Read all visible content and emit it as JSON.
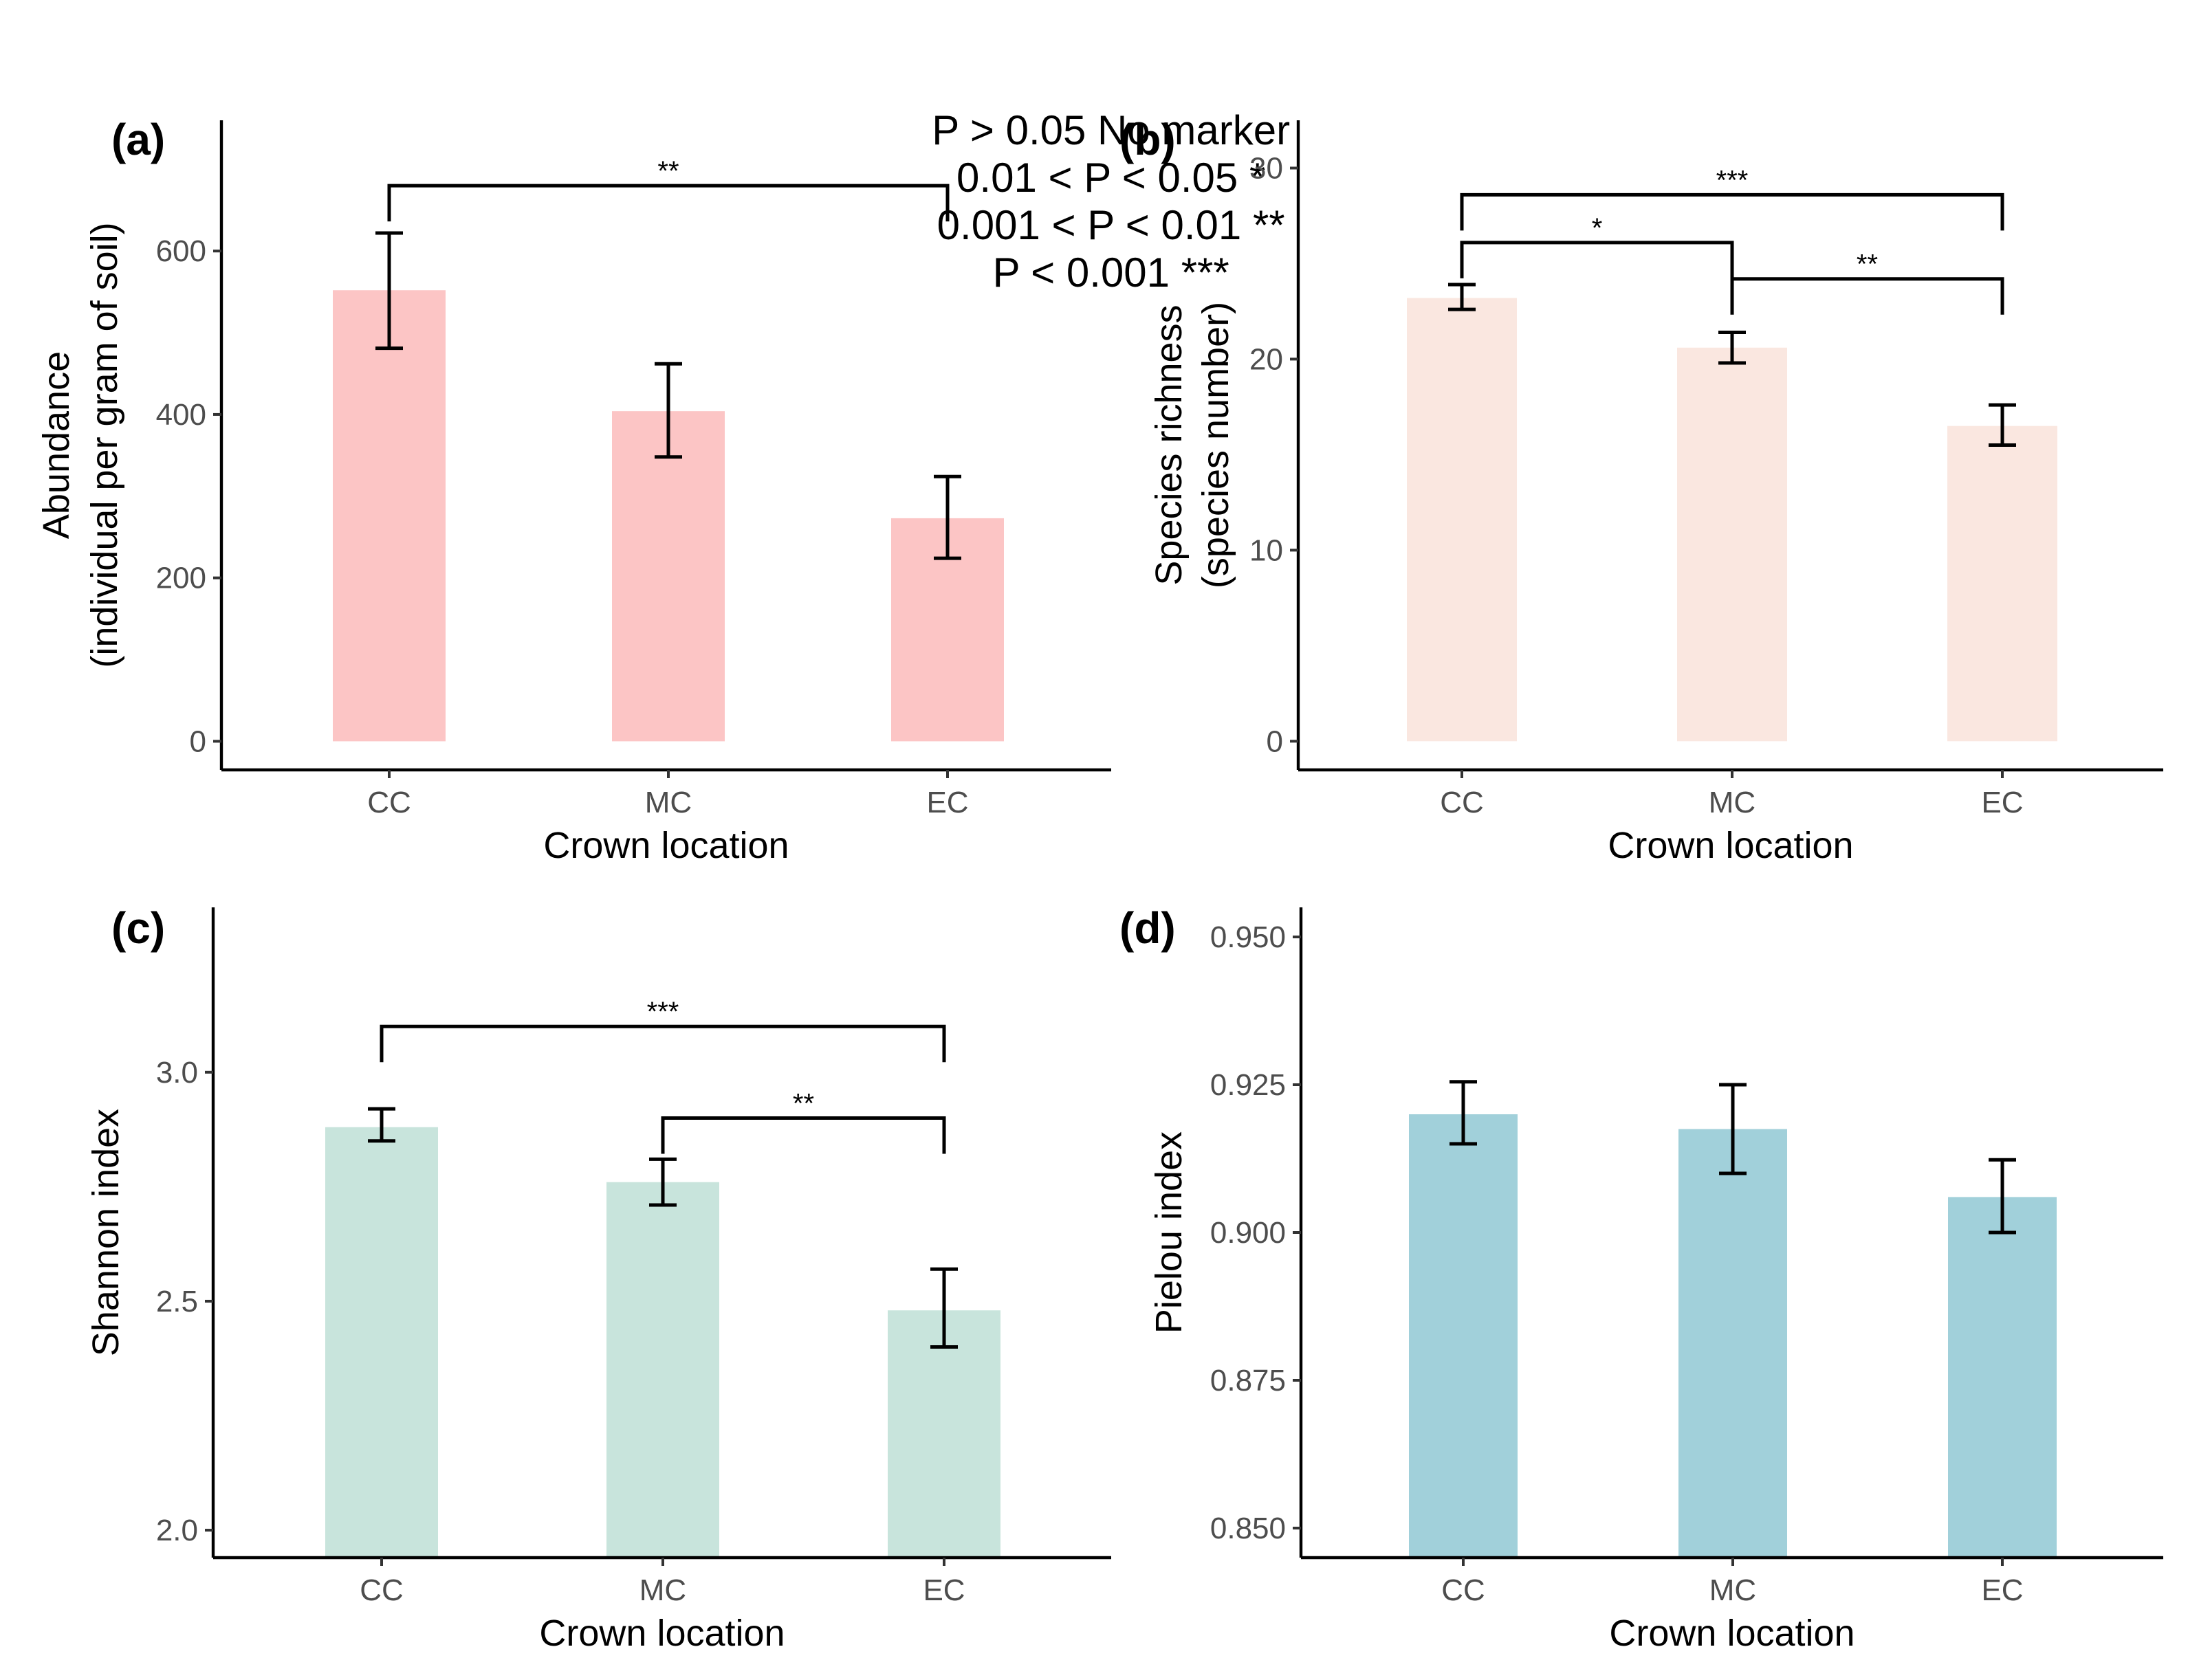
{
  "legend_items": [
    "P > 0.05 No marker",
    "0.01 < P < 0.05 *",
    "0.001 < P < 0.01 **",
    "P < 0.001 ***"
  ],
  "chart_data": [
    {
      "tag": "(a)",
      "type": "bar",
      "categories": [
        "CC",
        "MC",
        "EC"
      ],
      "values": [
        552,
        404,
        273
      ],
      "errors": [
        [
          481,
          622
        ],
        [
          348,
          462
        ],
        [
          224,
          324
        ]
      ],
      "xlabel": "Crown location",
      "ylabel": [
        "Abundance",
        "(individual per gram of soil)"
      ],
      "ylim": [
        -35,
        760
      ],
      "yticks": [
        0,
        200,
        400,
        600
      ],
      "ytick_labels": [
        "0",
        "200",
        "400",
        "600"
      ],
      "color": "#fcc5c5",
      "significance": [
        {
          "from": "CC",
          "to": "EC",
          "label": "**",
          "level": 680
        }
      ]
    },
    {
      "tag": "(b)",
      "type": "bar",
      "categories": [
        "CC",
        "MC",
        "EC"
      ],
      "values": [
        23.2,
        20.6,
        16.5
      ],
      "errors": [
        [
          22.6,
          23.9
        ],
        [
          19.8,
          21.4
        ],
        [
          15.5,
          17.6
        ]
      ],
      "xlabel": "Crown location",
      "ylabel": [
        "Species richness",
        "(species number)"
      ],
      "ylim": [
        -1.5,
        32.5
      ],
      "yticks": [
        0,
        10,
        20,
        30
      ],
      "ytick_labels": [
        "0",
        "10",
        "20",
        "30"
      ],
      "color": "#fae7e0",
      "significance": [
        {
          "from": "CC",
          "to": "MC",
          "label": "*",
          "level": 26.1
        },
        {
          "from": "MC",
          "to": "EC",
          "label": "**",
          "level": 24.2
        },
        {
          "from": "CC",
          "to": "EC",
          "label": "***",
          "level": 28.6
        }
      ]
    },
    {
      "tag": "(c)",
      "type": "bar",
      "categories": [
        "CC",
        "MC",
        "EC"
      ],
      "values": [
        2.88,
        2.76,
        2.48
      ],
      "errors": [
        [
          2.85,
          2.92
        ],
        [
          2.71,
          2.81
        ],
        [
          2.4,
          2.57
        ]
      ],
      "xlabel": "Crown location",
      "ylabel": [
        "Shannon index"
      ],
      "ylim": [
        1.94,
        3.36
      ],
      "yticks": [
        2.0,
        2.5,
        3.0
      ],
      "ytick_labels": [
        "2.0",
        "2.5",
        "3.0"
      ],
      "color": "#c8e4dc",
      "significance": [
        {
          "from": "CC",
          "to": "EC",
          "label": "***",
          "level": 3.1
        },
        {
          "from": "MC",
          "to": "EC",
          "label": "**",
          "level": 2.9
        }
      ]
    },
    {
      "tag": "(d)",
      "type": "bar",
      "categories": [
        "CC",
        "MC",
        "EC"
      ],
      "values": [
        0.92,
        0.9175,
        0.906
      ],
      "errors": [
        [
          0.915,
          0.9255
        ],
        [
          0.91,
          0.925
        ],
        [
          0.9,
          0.9123
        ]
      ],
      "xlabel": "Crown location",
      "ylabel": [
        "Pielou index"
      ],
      "ylim": [
        0.845,
        0.955
      ],
      "yticks": [
        0.85,
        0.875,
        0.9,
        0.925,
        0.95
      ],
      "ytick_labels": [
        "0.850",
        "0.875",
        "0.900",
        "0.925",
        "0.950"
      ],
      "color": "#a1d0da",
      "significance": []
    }
  ]
}
